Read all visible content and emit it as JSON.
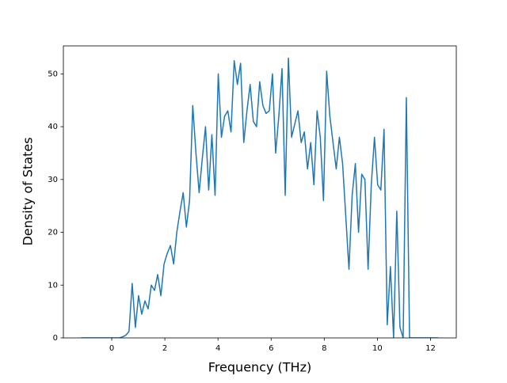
{
  "chart_data": {
    "type": "line",
    "xlabel": "Frequency (THz)",
    "ylabel": "Density of States",
    "x": [
      -1.15,
      -1.03,
      -0.91,
      -0.79,
      -0.67,
      -0.55,
      -0.43,
      -0.31,
      -0.19,
      -0.07,
      0.05,
      0.17,
      0.29,
      0.41,
      0.53,
      0.65,
      0.77,
      0.89,
      1.01,
      1.13,
      1.25,
      1.37,
      1.49,
      1.61,
      1.73,
      1.85,
      1.97,
      2.09,
      2.21,
      2.33,
      2.45,
      2.57,
      2.69,
      2.81,
      2.93,
      3.05,
      3.17,
      3.29,
      3.41,
      3.53,
      3.65,
      3.77,
      3.89,
      4.01,
      4.13,
      4.25,
      4.37,
      4.49,
      4.61,
      4.73,
      4.85,
      4.97,
      5.09,
      5.21,
      5.33,
      5.45,
      5.57,
      5.69,
      5.81,
      5.93,
      6.05,
      6.17,
      6.29,
      6.41,
      6.53,
      6.65,
      6.77,
      6.89,
      7.01,
      7.13,
      7.25,
      7.37,
      7.49,
      7.61,
      7.73,
      7.85,
      7.97,
      8.09,
      8.21,
      8.33,
      8.45,
      8.57,
      8.69,
      8.81,
      8.93,
      9.05,
      9.17,
      9.29,
      9.41,
      9.53,
      9.65,
      9.77,
      9.89,
      10.01,
      10.13,
      10.25,
      10.37,
      10.49,
      10.61,
      10.73,
      10.85,
      10.97,
      11.09,
      11.21,
      11.33,
      11.45,
      11.57,
      11.69,
      11.81,
      11.93,
      12.05,
      12.17,
      12.29
    ],
    "values": [
      0,
      0,
      0,
      0,
      0,
      0,
      0,
      0,
      0,
      0,
      0,
      0,
      0,
      0.2,
      0.5,
      1.2,
      10.3,
      2,
      8,
      4.5,
      7,
      5.5,
      10,
      9,
      12,
      8,
      14,
      16,
      17.5,
      14,
      20,
      24,
      27.5,
      21,
      26,
      44,
      35,
      27.5,
      34,
      40,
      28,
      38.5,
      27,
      50,
      38,
      42,
      43,
      39,
      52.5,
      48,
      52,
      37,
      43,
      48,
      41,
      40,
      48.5,
      44,
      42.5,
      43,
      50,
      35,
      42,
      51,
      27,
      53,
      38,
      40.5,
      43,
      37,
      39,
      32,
      37,
      29,
      43,
      38,
      26,
      50.5,
      42,
      37,
      32,
      38,
      33,
      23,
      13,
      27,
      33,
      20,
      31,
      30,
      13,
      29,
      38,
      29,
      28,
      39.5,
      2.5,
      13.5,
      0,
      24,
      2,
      0,
      45.5,
      0,
      0,
      0,
      0,
      0,
      0,
      0,
      0,
      0,
      0
    ],
    "color": "#1f77b4",
    "xlim": [
      -1.82,
      12.97
    ],
    "xticks": [
      0,
      2,
      4,
      6,
      8,
      10,
      12
    ],
    "ylim": [
      0,
      55.3
    ],
    "yticks": [
      0,
      10,
      20,
      30,
      40,
      50
    ]
  }
}
